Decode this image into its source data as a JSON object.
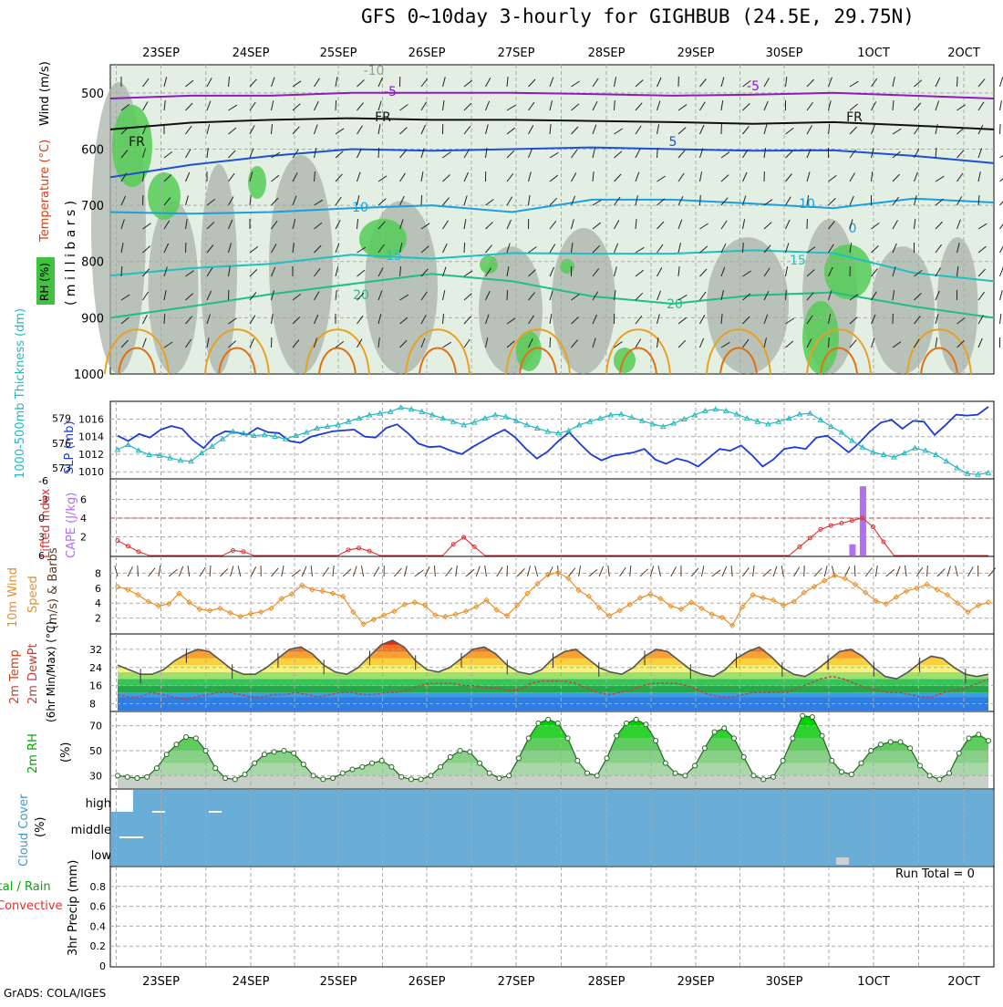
{
  "header": {
    "title": "GFS 0~10day 3-hourly for GIGHBUB (24.5E, 29.75N)",
    "credit": "GrADS: COLA/IGES"
  },
  "colors": {
    "rh_green": "#3fc23f",
    "grey_fill": "#a8b0a8",
    "blue_slp": "#1c3ad8",
    "cyan_thick": "#22b8c0",
    "cape_purple": "#b070f0",
    "wind_orange": "#e8902a",
    "cloud_blue": "#6aaed8",
    "rh_green_bright": "#00d800",
    "panel_grid": "#aaaaaa"
  },
  "chart_data": [
    {
      "type": "area",
      "panel": "wind_temp_rh_sounding",
      "x_tick_labels": [
        "23SEP",
        "24SEP",
        "25SEP",
        "26SEP",
        "27SEP",
        "28SEP",
        "29SEP",
        "30SEP",
        "1OCT",
        "2OCT"
      ],
      "y_tick_labels": [
        "500",
        "600",
        "700",
        "800",
        "900",
        "1000"
      ],
      "ylabel": "( m i l l i b a r s )",
      "legend_labels": [
        "Wind (m/s)",
        "Temperature (°C)",
        "RH (%)"
      ],
      "ylim": [
        1000,
        450
      ],
      "isotherm_labels": [
        "-5",
        "-5",
        "FR",
        "FR",
        "FR",
        "5",
        "10",
        "10",
        "15",
        "15",
        "20",
        "20",
        "-10",
        "0"
      ],
      "isotherms": [
        {
          "label": "-5",
          "color": "#8a1cc0",
          "p": [
            510,
            505,
            505,
            500,
            500,
            500,
            502,
            505,
            503,
            500,
            505,
            510
          ]
        },
        {
          "label": "FR",
          "color": "#111111",
          "p": [
            565,
            553,
            548,
            545,
            548,
            548,
            550,
            552,
            555,
            552,
            558,
            565
          ]
        },
        {
          "label": "5",
          "color": "#1c50d8",
          "p": [
            650,
            628,
            612,
            600,
            603,
            600,
            597,
            600,
            603,
            602,
            612,
            625
          ]
        },
        {
          "label": "10",
          "color": "#1a9fe0",
          "p": [
            712,
            715,
            712,
            705,
            700,
            712,
            690,
            690,
            697,
            705,
            688,
            695
          ]
        },
        {
          "label": "15",
          "color": "#20c0c0",
          "p": [
            825,
            812,
            804,
            788,
            795,
            785,
            786,
            786,
            780,
            785,
            820,
            835
          ]
        },
        {
          "label": "20",
          "color": "#20c080",
          "p": [
            900,
            880,
            858,
            840,
            822,
            835,
            862,
            875,
            860,
            855,
            880,
            900
          ]
        }
      ]
    },
    {
      "type": "line",
      "panel": "slp_thickness",
      "ylabel_left": "1000-500mb Thickness (dm)",
      "ylabel_right": "SLP (mb)",
      "y_ticks_thickness": [
        "579",
        "576",
        "573"
      ],
      "y_ticks_slp": [
        "1016",
        "1014",
        "1012",
        "1010"
      ],
      "ylim_slp": [
        1009.5,
        1017.5
      ],
      "ylim_thickness": [
        572,
        580.5
      ],
      "series": [
        {
          "name": "SLP",
          "color": "#1c3ad8",
          "values": [
            1014.1,
            1013.5,
            1014.3,
            1013.9,
            1014.8,
            1015.2,
            1014.9,
            1013.6,
            1012.7,
            1014.0,
            1014.6,
            1014.5,
            1014.2,
            1015.0,
            1014.5,
            1014.4,
            1013.5,
            1013.3,
            1014.0,
            1014.3,
            1014.6,
            1014.7,
            1014.8,
            1014.0,
            1013.9,
            1015.0,
            1015.4,
            1014.4,
            1013.2,
            1012.8,
            1012.9,
            1012.4,
            1012.0,
            1012.8,
            1013.5,
            1014.2,
            1014.8,
            1013.9,
            1012.6,
            1011.5,
            1012.3,
            1013.5,
            1014.5,
            1013.2,
            1012.0,
            1011.3,
            1011.8,
            1012.0,
            1012.2,
            1012.6,
            1011.4,
            1010.9,
            1011.5,
            1011.2,
            1010.6,
            1011.6,
            1012.6,
            1012.4,
            1013.0,
            1011.9,
            1010.6,
            1011.4,
            1012.6,
            1012.8,
            1012.6,
            1013.9,
            1014.1,
            1013.2,
            1012.2,
            1013.3,
            1014.6,
            1015.6,
            1015.9,
            1014.9,
            1015.8,
            1015.7,
            1014.2,
            1015.3,
            1016.5,
            1016.4,
            1016.5,
            1017.4
          ]
        },
        {
          "name": "Thickness",
          "color": "#22b8c0",
          "values": [
            575.2,
            575.8,
            575.1,
            574.6,
            574.5,
            574.2,
            573.9,
            573.8,
            574.8,
            575.6,
            576.5,
            577.4,
            577.2,
            576.9,
            577.0,
            576.8,
            576.5,
            576.9,
            577.3,
            577.8,
            578.0,
            578.2,
            578.6,
            579.0,
            579.4,
            579.6,
            579.8,
            580.3,
            580.1,
            579.8,
            579.4,
            579.0,
            578.6,
            578.2,
            578.5,
            579.0,
            579.4,
            579.2,
            578.7,
            578.2,
            577.8,
            577.4,
            577.2,
            577.5,
            578.2,
            578.6,
            579.0,
            579.4,
            579.5,
            579.1,
            578.7,
            578.3,
            578.0,
            578.4,
            578.9,
            579.4,
            579.9,
            580.1,
            579.9,
            579.5,
            579.0,
            578.6,
            578.3,
            578.6,
            579.0,
            579.5,
            579.6,
            578.8,
            578.0,
            577.3,
            576.3,
            575.5,
            574.9,
            574.6,
            574.3,
            574.8,
            575.4,
            575.1,
            574.6,
            573.8,
            573.0,
            572.3,
            572.2,
            572.4
          ]
        }
      ]
    },
    {
      "type": "bar",
      "panel": "lifted_index_cape",
      "ylabel_left": "Lifted Index",
      "ylabel_right": "CAPE (J/kg)",
      "y_ticks_li": [
        "-6",
        "-3",
        "0",
        "3",
        "6"
      ],
      "y_ticks_cape": [
        "6",
        "4",
        "2"
      ],
      "ylim_cape": [
        0,
        8
      ],
      "cape_bars": [
        {
          "index": 70,
          "value": 1.2
        },
        {
          "index": 71,
          "value": 7.4
        }
      ],
      "lifted_index": [
        3.6,
        4.5,
        5.4,
        6.0,
        6.0,
        6.0,
        6.0,
        6.0,
        6.0,
        6.0,
        6.0,
        5.2,
        5.4,
        6.0,
        6.0,
        6.0,
        6.0,
        6.0,
        6.0,
        6.0,
        6.0,
        6.0,
        5.1,
        4.8,
        5.3,
        6.0,
        6.0,
        6.0,
        6.0,
        6.0,
        6.0,
        6.0,
        4.2,
        3.1,
        4.6,
        6.0,
        6.0,
        6.0,
        6.0,
        6.0,
        6.0,
        6.0,
        6.0,
        6.0,
        6.0,
        6.0,
        6.0,
        6.0,
        6.0,
        6.0,
        6.0,
        6.0,
        6.0,
        6.0,
        6.0,
        6.0,
        6.0,
        6.0,
        6.0,
        6.0,
        6.0,
        6.0,
        6.0,
        6.0,
        6.0,
        4.6,
        3.2,
        1.8,
        1.2,
        0.8,
        0.4,
        0.0,
        1.4,
        3.8,
        6.0,
        6.0,
        6.0,
        6.0,
        6.0,
        6.0,
        6.0,
        6.0,
        6.0,
        6.0
      ]
    },
    {
      "type": "line",
      "panel": "wind_10m",
      "ylabel": "10m Wind Speed & Barbs (m/s)",
      "y_ticks": [
        "8",
        "6",
        "4",
        "2"
      ],
      "ylim": [
        0,
        10
      ],
      "series": [
        {
          "name": "Speed",
          "color": "#e8902a",
          "values": [
            6.2,
            5.8,
            5.1,
            4.2,
            3.6,
            3.9,
            5.3,
            4.1,
            3.2,
            3.0,
            3.3,
            2.7,
            2.2,
            2.6,
            2.8,
            3.3,
            4.6,
            5.2,
            6.4,
            5.8,
            5.6,
            5.3,
            4.9,
            2.8,
            1.2,
            1.8,
            2.4,
            2.9,
            3.8,
            4.1,
            3.7,
            2.4,
            2.2,
            2.5,
            2.9,
            3.5,
            4.4,
            3.1,
            2.3,
            3.7,
            5.3,
            6.6,
            7.8,
            8.1,
            7.3,
            5.7,
            4.9,
            3.4,
            2.3,
            3.0,
            3.8,
            4.7,
            5.2,
            4.6,
            3.6,
            3.2,
            4.1,
            3.3,
            2.5,
            2.1,
            1.0,
            3.5,
            5.1,
            4.7,
            4.4,
            3.7,
            4.2,
            5.4,
            6.2,
            7.0,
            7.7,
            7.3,
            6.5,
            5.4,
            4.3,
            3.9,
            4.8,
            5.6,
            6.0,
            6.5,
            5.8,
            5.1,
            4.0,
            2.8,
            3.7,
            4.1
          ]
        }
      ]
    },
    {
      "type": "area",
      "panel": "temp_2m",
      "ylabel": "2m Temp 2m DewPt (6hr Min/Max) (°C)",
      "y_ticks": [
        "32",
        "24",
        "16",
        "8"
      ],
      "ylim": [
        5,
        38
      ],
      "series": [
        {
          "name": "Temp",
          "color": "#555555",
          "values": [
            25,
            23,
            21,
            21,
            23,
            27,
            30,
            32,
            31,
            27,
            23,
            21,
            21,
            24,
            28,
            32,
            33,
            30,
            25,
            22,
            21,
            24,
            29,
            34,
            36,
            33,
            27,
            23,
            22,
            24,
            28,
            32,
            33,
            30,
            25,
            22,
            21,
            23,
            28,
            31,
            32,
            28,
            24,
            22,
            21,
            24,
            29,
            32,
            31,
            27,
            23,
            21,
            20,
            23,
            28,
            31,
            33,
            29,
            24,
            21,
            20,
            23,
            27,
            31,
            32,
            29,
            24,
            20,
            19,
            22,
            26,
            29,
            28,
            24,
            21,
            20,
            21
          ]
        },
        {
          "name": "DewPt",
          "color": "#c04040",
          "values": [
            12,
            11,
            11,
            13,
            12,
            11,
            10,
            11,
            12,
            13,
            13,
            12,
            11,
            11,
            12,
            12,
            13,
            12,
            11,
            12,
            13,
            13,
            12,
            12,
            13,
            13,
            14,
            16,
            17,
            17,
            17,
            16,
            16,
            15,
            15,
            14,
            14,
            17,
            18,
            18,
            18,
            17,
            15,
            13,
            12,
            13,
            14,
            16,
            17,
            17,
            17,
            16,
            14,
            12,
            11,
            11,
            12,
            13,
            13,
            13,
            13,
            15,
            17,
            19,
            20,
            19,
            17,
            15,
            14,
            13,
            13,
            12,
            11,
            11,
            13,
            14,
            15,
            17,
            19
          ]
        }
      ]
    },
    {
      "type": "area",
      "panel": "rh_2m",
      "ylabel": "2m RH (%)",
      "y_ticks": [
        "70",
        "50",
        "30"
      ],
      "ylim": [
        20,
        80
      ],
      "series": [
        {
          "name": "RH",
          "color": "#00d800",
          "values": [
            30,
            29,
            28,
            29,
            36,
            47,
            55,
            61,
            60,
            50,
            36,
            28,
            27,
            31,
            40,
            47,
            49,
            50,
            48,
            39,
            30,
            27,
            28,
            32,
            35,
            37,
            40,
            42,
            37,
            29,
            27,
            27,
            30,
            37,
            45,
            50,
            49,
            40,
            32,
            28,
            30,
            44,
            60,
            72,
            75,
            72,
            60,
            42,
            32,
            30,
            44,
            62,
            72,
            75,
            71,
            58,
            40,
            32,
            30,
            38,
            52,
            65,
            68,
            60,
            45,
            30,
            27,
            29,
            42,
            60,
            78,
            77,
            62,
            42,
            33,
            31,
            40,
            50,
            55,
            57,
            57,
            52,
            38,
            30,
            27,
            32,
            48,
            60,
            63,
            58
          ]
        }
      ]
    },
    {
      "type": "heatmap",
      "panel": "cloud_cover",
      "ylabel": "Cloud Cover (%)",
      "levels": [
        "high",
        "middle",
        "low"
      ]
    },
    {
      "type": "bar",
      "panel": "precip",
      "ylabel_line1": "Total / Rain",
      "ylabel_line2": "Convective",
      "ylabel_line3": "3hr Precip (mm)",
      "y_ticks": [
        "0.8",
        "0.6",
        "0.4",
        "0.2",
        "0"
      ],
      "ylim": [
        0,
        1
      ],
      "run_total": "Run Total = 0",
      "values": []
    }
  ]
}
